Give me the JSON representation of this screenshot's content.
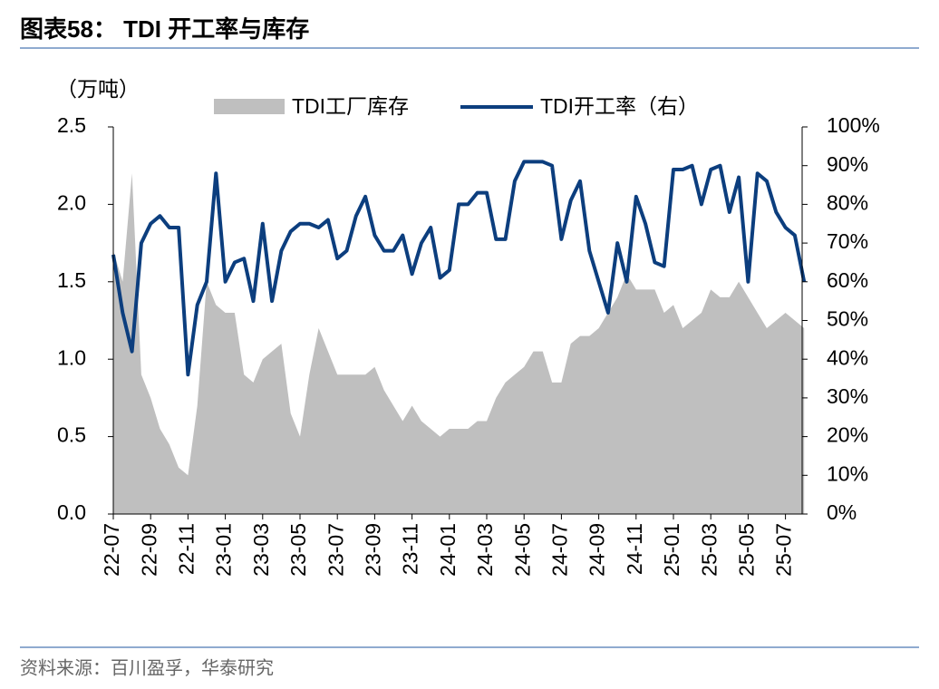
{
  "chart_data": {
    "type": "area-line",
    "title": "图表58： TDI 开工率与库存",
    "y_unit": "（万吨）",
    "source": "资料来源：百川盈孚，华泰研究",
    "categories": [
      "22-07",
      null,
      null,
      null,
      "22-09",
      null,
      null,
      null,
      "22-11",
      null,
      null,
      null,
      "23-01",
      null,
      null,
      null,
      "23-03",
      null,
      null,
      null,
      "23-05",
      null,
      null,
      null,
      "23-07",
      null,
      null,
      null,
      "23-09",
      null,
      null,
      null,
      "23-11",
      null,
      null,
      null,
      "24-01",
      null,
      null,
      null,
      "24-03",
      null,
      null,
      null,
      "24-05",
      null,
      null,
      null,
      "24-07",
      null,
      null,
      null,
      "24-09",
      null,
      null,
      null,
      "24-11",
      null,
      null,
      null,
      "25-01",
      null,
      null,
      null,
      "25-03",
      null,
      null,
      null,
      "25-05",
      null,
      null,
      null,
      "25-07",
      null,
      null
    ],
    "series": [
      {
        "name": "TDI工厂库存",
        "color": "#bfbfbf",
        "kind": "area",
        "values": [
          1.7,
          1.5,
          2.2,
          0.9,
          0.75,
          0.55,
          0.45,
          0.3,
          0.25,
          0.7,
          1.5,
          1.35,
          1.3,
          1.3,
          0.9,
          0.85,
          1.0,
          1.05,
          1.1,
          0.65,
          0.5,
          0.9,
          1.2,
          1.05,
          0.9,
          0.9,
          0.9,
          0.9,
          0.95,
          0.8,
          0.7,
          0.6,
          0.7,
          0.6,
          0.55,
          0.5,
          0.55,
          0.55,
          0.55,
          0.6,
          0.6,
          0.75,
          0.85,
          0.9,
          0.95,
          1.05,
          1.05,
          0.85,
          0.85,
          1.1,
          1.15,
          1.15,
          1.2,
          1.3,
          1.4,
          1.55,
          1.45,
          1.45,
          1.45,
          1.3,
          1.35,
          1.2,
          1.25,
          1.3,
          1.45,
          1.4,
          1.4,
          1.5,
          1.4,
          1.3,
          1.2,
          1.25,
          1.3,
          1.25,
          1.2
        ]
      },
      {
        "name": "TDI开工率（右）",
        "color": "#0c3e7e",
        "kind": "line",
        "axis": "y2",
        "values": [
          67,
          52,
          42,
          70,
          75,
          77,
          74,
          74,
          36,
          54,
          60,
          88,
          60,
          65,
          66,
          55,
          75,
          55,
          68,
          73,
          75,
          75,
          74,
          76,
          66,
          68,
          77,
          82,
          72,
          68,
          68,
          72,
          62,
          70,
          74,
          61,
          63,
          80,
          80,
          83,
          83,
          71,
          71,
          86,
          91,
          91,
          91,
          90,
          71,
          81,
          86,
          68,
          60,
          52,
          70,
          60,
          82,
          75,
          65,
          64,
          89,
          89,
          90,
          80,
          89,
          90,
          78,
          87,
          60,
          88,
          86,
          78,
          74,
          72,
          60
        ]
      }
    ],
    "ylim": [
      0,
      2.5
    ],
    "yticks": [
      {
        "value": 0,
        "label": "0.0"
      },
      {
        "value": 0.5,
        "label": "0.5"
      },
      {
        "value": 1,
        "label": "1.0"
      },
      {
        "value": 1.5,
        "label": "1.5"
      },
      {
        "value": 2,
        "label": "2.0"
      },
      {
        "value": 2.5,
        "label": "2.5"
      }
    ],
    "y2lim": [
      0,
      100
    ],
    "y2ticks": [
      {
        "value": 0,
        "label": "0%"
      },
      {
        "value": 10,
        "label": "10%"
      },
      {
        "value": 20,
        "label": "20%"
      },
      {
        "value": 30,
        "label": "30%"
      },
      {
        "value": 40,
        "label": "40%"
      },
      {
        "value": 50,
        "label": "50%"
      },
      {
        "value": 60,
        "label": "60%"
      },
      {
        "value": 70,
        "label": "70%"
      },
      {
        "value": 80,
        "label": "80%"
      },
      {
        "value": 90,
        "label": "90%"
      },
      {
        "value": 100,
        "label": "100%"
      }
    ]
  }
}
